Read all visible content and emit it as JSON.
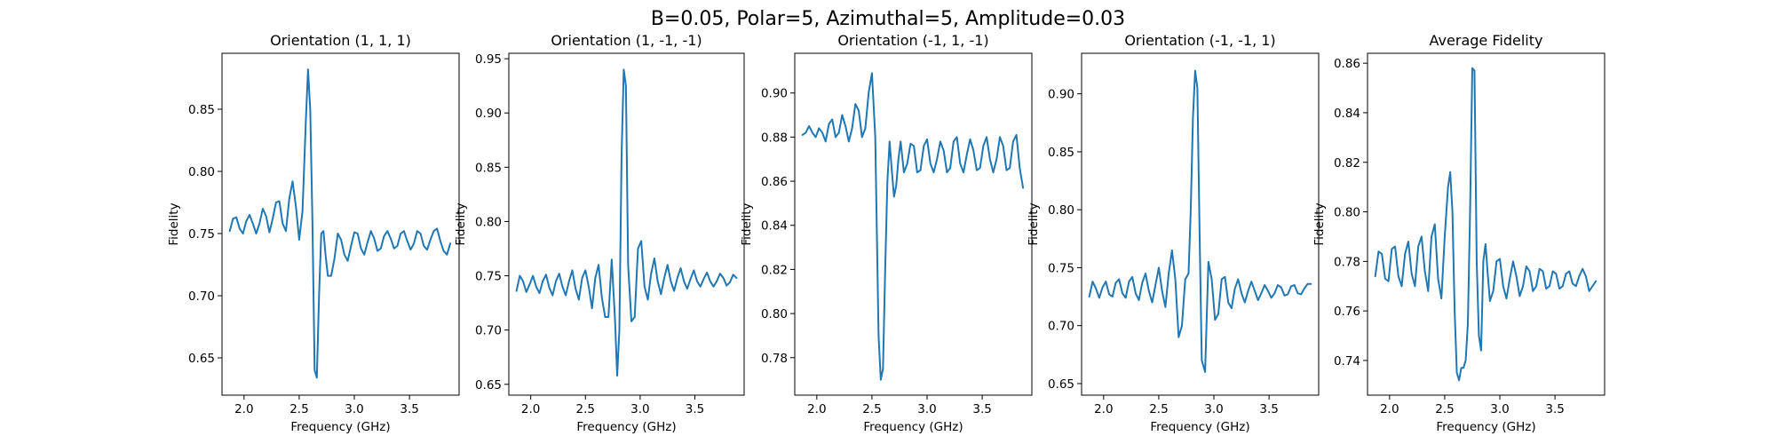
{
  "figure": {
    "suptitle": "B=0.05, Polar=5, Azimuthal=5, Amplitude=0.03"
  },
  "chart_data": [
    {
      "type": "line",
      "title": "Orientation (1, 1, 1)",
      "xlabel": "Frequency (GHz)",
      "ylabel": "Fidelity",
      "xlim": [
        1.8,
        3.95
      ],
      "ylim": [
        0.62,
        0.895
      ],
      "xticks": [
        "2.0",
        "2.5",
        "3.0",
        "3.5"
      ],
      "yticks": [
        "0.65",
        "0.70",
        "0.75",
        "0.80",
        "0.85"
      ],
      "series": [
        {
          "x": [
            1.87,
            1.9,
            1.93,
            1.96,
            1.99,
            2.02,
            2.05,
            2.08,
            2.11,
            2.14,
            2.17,
            2.2,
            2.23,
            2.26,
            2.29,
            2.32,
            2.35,
            2.38,
            2.41,
            2.44,
            2.47,
            2.5,
            2.53,
            2.56,
            2.58,
            2.6,
            2.62,
            2.64,
            2.66,
            2.68,
            2.7,
            2.72,
            2.74,
            2.76,
            2.79,
            2.82,
            2.85,
            2.88,
            2.91,
            2.94,
            2.97,
            3.0,
            3.03,
            3.06,
            3.09,
            3.12,
            3.15,
            3.18,
            3.21,
            3.24,
            3.27,
            3.3,
            3.33,
            3.36,
            3.39,
            3.42,
            3.45,
            3.48,
            3.51,
            3.54,
            3.57,
            3.6,
            3.63,
            3.66,
            3.69,
            3.72,
            3.75,
            3.78,
            3.81,
            3.84,
            3.87
          ],
          "y": [
            0.752,
            0.762,
            0.763,
            0.754,
            0.75,
            0.76,
            0.765,
            0.758,
            0.75,
            0.758,
            0.77,
            0.764,
            0.751,
            0.762,
            0.775,
            0.776,
            0.758,
            0.752,
            0.778,
            0.792,
            0.772,
            0.745,
            0.768,
            0.84,
            0.882,
            0.85,
            0.76,
            0.64,
            0.634,
            0.7,
            0.75,
            0.752,
            0.732,
            0.716,
            0.716,
            0.73,
            0.75,
            0.745,
            0.733,
            0.728,
            0.74,
            0.751,
            0.75,
            0.738,
            0.733,
            0.743,
            0.752,
            0.746,
            0.736,
            0.738,
            0.748,
            0.752,
            0.746,
            0.738,
            0.74,
            0.75,
            0.752,
            0.744,
            0.737,
            0.742,
            0.752,
            0.75,
            0.74,
            0.737,
            0.745,
            0.752,
            0.754,
            0.744,
            0.736,
            0.733,
            0.742
          ]
        }
      ]
    },
    {
      "type": "line",
      "title": "Orientation (1, -1, -1)",
      "xlabel": "Frequency (GHz)",
      "ylabel": "Fidelity",
      "xlim": [
        1.8,
        3.95
      ],
      "ylim": [
        0.64,
        0.955
      ],
      "xticks": [
        "2.0",
        "2.5",
        "3.0",
        "3.5"
      ],
      "yticks": [
        "0.65",
        "0.70",
        "0.75",
        "0.80",
        "0.85",
        "0.90",
        "0.95"
      ],
      "series": [
        {
          "x": [
            1.87,
            1.9,
            1.93,
            1.96,
            1.99,
            2.02,
            2.05,
            2.08,
            2.11,
            2.14,
            2.17,
            2.2,
            2.23,
            2.26,
            2.29,
            2.32,
            2.35,
            2.38,
            2.41,
            2.44,
            2.47,
            2.5,
            2.53,
            2.56,
            2.59,
            2.62,
            2.65,
            2.68,
            2.71,
            2.74,
            2.77,
            2.79,
            2.81,
            2.83,
            2.85,
            2.87,
            2.89,
            2.92,
            2.95,
            2.98,
            3.01,
            3.04,
            3.07,
            3.1,
            3.13,
            3.16,
            3.19,
            3.22,
            3.25,
            3.28,
            3.31,
            3.34,
            3.37,
            3.4,
            3.43,
            3.46,
            3.49,
            3.52,
            3.55,
            3.58,
            3.61,
            3.64,
            3.67,
            3.7,
            3.73,
            3.76,
            3.79,
            3.82,
            3.85,
            3.88
          ],
          "y": [
            0.736,
            0.75,
            0.745,
            0.735,
            0.742,
            0.75,
            0.74,
            0.734,
            0.745,
            0.751,
            0.739,
            0.732,
            0.745,
            0.752,
            0.74,
            0.732,
            0.745,
            0.755,
            0.738,
            0.728,
            0.748,
            0.755,
            0.74,
            0.72,
            0.748,
            0.76,
            0.73,
            0.712,
            0.712,
            0.765,
            0.71,
            0.658,
            0.7,
            0.86,
            0.94,
            0.925,
            0.76,
            0.708,
            0.712,
            0.775,
            0.782,
            0.74,
            0.728,
            0.752,
            0.766,
            0.745,
            0.733,
            0.748,
            0.76,
            0.745,
            0.736,
            0.748,
            0.757,
            0.745,
            0.738,
            0.747,
            0.755,
            0.745,
            0.74,
            0.747,
            0.753,
            0.745,
            0.74,
            0.745,
            0.752,
            0.748,
            0.741,
            0.744,
            0.751,
            0.748
          ]
        }
      ]
    },
    {
      "type": "line",
      "title": "Orientation (-1, 1, -1)",
      "xlabel": "Frequency (GHz)",
      "ylabel": "Fidelity",
      "xlim": [
        1.8,
        3.95
      ],
      "ylim": [
        0.763,
        0.918
      ],
      "xticks": [
        "2.0",
        "2.5",
        "3.0",
        "3.5"
      ],
      "yticks": [
        "0.78",
        "0.80",
        "0.82",
        "0.84",
        "0.86",
        "0.88",
        "0.90"
      ],
      "series": [
        {
          "x": [
            1.87,
            1.9,
            1.93,
            1.96,
            1.99,
            2.02,
            2.05,
            2.08,
            2.11,
            2.14,
            2.17,
            2.2,
            2.23,
            2.26,
            2.29,
            2.32,
            2.35,
            2.38,
            2.41,
            2.44,
            2.47,
            2.5,
            2.53,
            2.56,
            2.58,
            2.6,
            2.62,
            2.64,
            2.66,
            2.68,
            2.7,
            2.72,
            2.74,
            2.76,
            2.79,
            2.82,
            2.85,
            2.88,
            2.91,
            2.94,
            2.97,
            3.0,
            3.03,
            3.06,
            3.09,
            3.12,
            3.15,
            3.18,
            3.21,
            3.24,
            3.27,
            3.3,
            3.33,
            3.36,
            3.39,
            3.42,
            3.45,
            3.48,
            3.51,
            3.54,
            3.57,
            3.6,
            3.63,
            3.66,
            3.69,
            3.72,
            3.75,
            3.78,
            3.81,
            3.84,
            3.87
          ],
          "y": [
            0.881,
            0.882,
            0.885,
            0.882,
            0.88,
            0.884,
            0.882,
            0.878,
            0.886,
            0.888,
            0.88,
            0.882,
            0.89,
            0.885,
            0.878,
            0.884,
            0.895,
            0.892,
            0.88,
            0.884,
            0.9,
            0.909,
            0.88,
            0.79,
            0.77,
            0.775,
            0.82,
            0.86,
            0.878,
            0.865,
            0.853,
            0.858,
            0.87,
            0.878,
            0.864,
            0.868,
            0.877,
            0.876,
            0.864,
            0.865,
            0.876,
            0.879,
            0.868,
            0.864,
            0.87,
            0.878,
            0.874,
            0.864,
            0.866,
            0.878,
            0.88,
            0.868,
            0.864,
            0.872,
            0.879,
            0.874,
            0.865,
            0.866,
            0.876,
            0.88,
            0.87,
            0.864,
            0.87,
            0.88,
            0.876,
            0.865,
            0.866,
            0.878,
            0.881,
            0.866,
            0.857
          ]
        }
      ]
    },
    {
      "type": "line",
      "title": "Orientation (-1, -1, 1)",
      "xlabel": "Frequency (GHz)",
      "ylabel": "Fidelity",
      "xlim": [
        1.8,
        3.95
      ],
      "ylim": [
        0.64,
        0.935
      ],
      "xticks": [
        "2.0",
        "2.5",
        "3.0",
        "3.5"
      ],
      "yticks": [
        "0.65",
        "0.70",
        "0.75",
        "0.80",
        "0.85",
        "0.90"
      ],
      "series": [
        {
          "x": [
            1.87,
            1.9,
            1.93,
            1.96,
            1.99,
            2.02,
            2.05,
            2.08,
            2.11,
            2.14,
            2.17,
            2.2,
            2.23,
            2.26,
            2.29,
            2.32,
            2.35,
            2.38,
            2.41,
            2.44,
            2.47,
            2.5,
            2.53,
            2.56,
            2.59,
            2.62,
            2.65,
            2.68,
            2.71,
            2.74,
            2.77,
            2.79,
            2.81,
            2.83,
            2.85,
            2.87,
            2.89,
            2.92,
            2.95,
            2.98,
            3.01,
            3.04,
            3.07,
            3.1,
            3.13,
            3.16,
            3.19,
            3.22,
            3.25,
            3.28,
            3.31,
            3.34,
            3.37,
            3.4,
            3.43,
            3.46,
            3.49,
            3.52,
            3.55,
            3.58,
            3.61,
            3.64,
            3.67,
            3.7,
            3.73,
            3.76,
            3.79,
            3.82,
            3.85,
            3.88
          ],
          "y": [
            0.725,
            0.738,
            0.732,
            0.724,
            0.733,
            0.738,
            0.727,
            0.725,
            0.737,
            0.74,
            0.728,
            0.724,
            0.738,
            0.742,
            0.728,
            0.722,
            0.737,
            0.745,
            0.73,
            0.72,
            0.735,
            0.75,
            0.73,
            0.716,
            0.745,
            0.765,
            0.74,
            0.69,
            0.7,
            0.74,
            0.745,
            0.8,
            0.88,
            0.92,
            0.905,
            0.78,
            0.67,
            0.66,
            0.755,
            0.74,
            0.705,
            0.71,
            0.74,
            0.742,
            0.72,
            0.715,
            0.732,
            0.74,
            0.728,
            0.72,
            0.73,
            0.738,
            0.73,
            0.722,
            0.728,
            0.735,
            0.73,
            0.724,
            0.728,
            0.735,
            0.733,
            0.726,
            0.727,
            0.734,
            0.735,
            0.728,
            0.727,
            0.732,
            0.736,
            0.736
          ]
        }
      ]
    },
    {
      "type": "line",
      "title": "Average Fidelity",
      "xlabel": "Frequency (GHz)",
      "ylabel": "Fidelity",
      "xlim": [
        1.8,
        3.95
      ],
      "ylim": [
        0.726,
        0.864
      ],
      "xticks": [
        "2.0",
        "2.5",
        "3.0",
        "3.5"
      ],
      "yticks": [
        "0.74",
        "0.76",
        "0.78",
        "0.80",
        "0.82",
        "0.84",
        "0.86"
      ],
      "series": [
        {
          "x": [
            1.87,
            1.9,
            1.93,
            1.96,
            1.99,
            2.02,
            2.05,
            2.08,
            2.11,
            2.14,
            2.17,
            2.2,
            2.23,
            2.26,
            2.29,
            2.32,
            2.35,
            2.38,
            2.41,
            2.44,
            2.47,
            2.5,
            2.53,
            2.55,
            2.57,
            2.59,
            2.61,
            2.63,
            2.65,
            2.67,
            2.69,
            2.71,
            2.73,
            2.75,
            2.77,
            2.79,
            2.81,
            2.83,
            2.85,
            2.87,
            2.89,
            2.91,
            2.94,
            2.97,
            3.0,
            3.03,
            3.06,
            3.09,
            3.12,
            3.15,
            3.18,
            3.21,
            3.24,
            3.27,
            3.3,
            3.33,
            3.36,
            3.39,
            3.42,
            3.45,
            3.48,
            3.51,
            3.54,
            3.57,
            3.6,
            3.63,
            3.66,
            3.69,
            3.72,
            3.75,
            3.78,
            3.81,
            3.84,
            3.87
          ],
          "y": [
            0.774,
            0.784,
            0.783,
            0.773,
            0.772,
            0.785,
            0.786,
            0.774,
            0.77,
            0.783,
            0.788,
            0.775,
            0.77,
            0.786,
            0.79,
            0.776,
            0.768,
            0.79,
            0.795,
            0.773,
            0.765,
            0.79,
            0.81,
            0.816,
            0.8,
            0.76,
            0.735,
            0.732,
            0.737,
            0.737,
            0.74,
            0.755,
            0.8,
            0.858,
            0.857,
            0.78,
            0.75,
            0.744,
            0.78,
            0.787,
            0.775,
            0.764,
            0.768,
            0.78,
            0.781,
            0.77,
            0.765,
            0.773,
            0.78,
            0.774,
            0.766,
            0.77,
            0.778,
            0.776,
            0.768,
            0.77,
            0.777,
            0.776,
            0.769,
            0.77,
            0.776,
            0.775,
            0.769,
            0.77,
            0.775,
            0.776,
            0.771,
            0.77,
            0.774,
            0.777,
            0.774,
            0.768,
            0.77,
            0.772
          ]
        }
      ]
    }
  ]
}
